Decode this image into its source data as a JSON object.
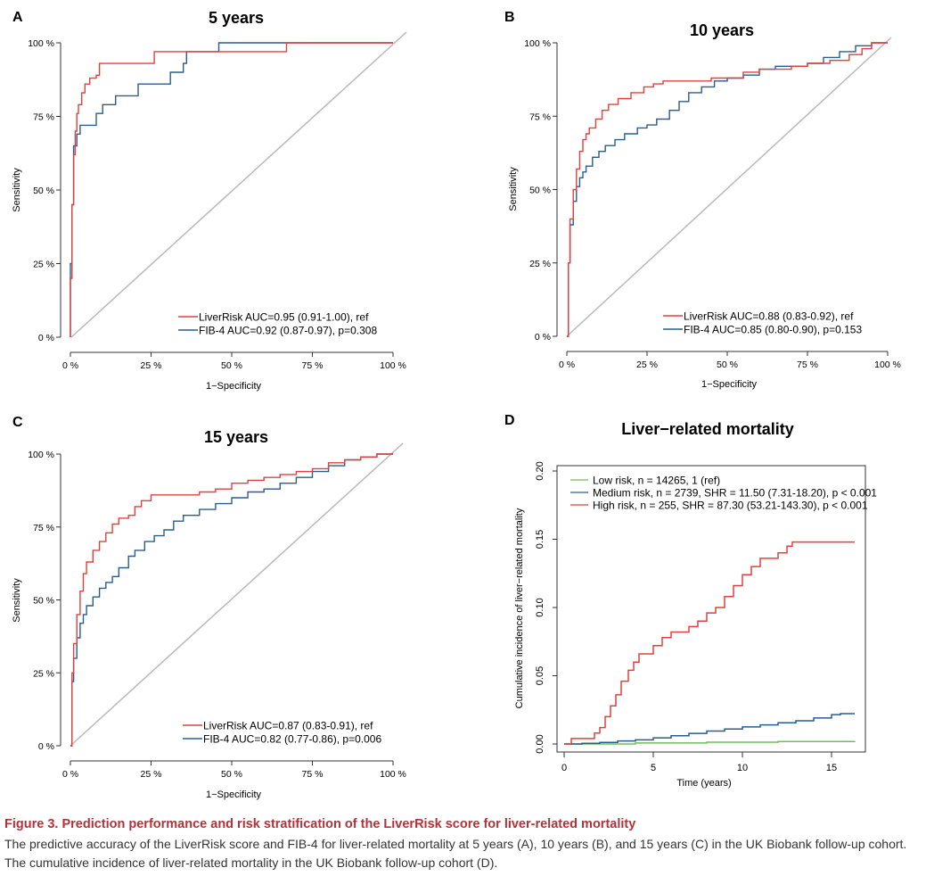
{
  "chart_data": [
    {
      "panel": "A",
      "type": "line",
      "title": "5 years",
      "xlabel": "1−Specificity",
      "ylabel": "Sensitivity",
      "xlim": [
        0,
        100
      ],
      "ylim": [
        0,
        100
      ],
      "x_ticks": [
        "0 %",
        "25 %",
        "50 %",
        "75 %",
        "100 %"
      ],
      "y_ticks": [
        "0 %",
        "25 %",
        "50 %",
        "75 %",
        "100 %"
      ],
      "legend": "bottom-right",
      "reference_line": true,
      "series": [
        {
          "name": "LiverRisk AUC=0.95 (0.91-1.00), ref",
          "color": "#e0413e",
          "points": [
            [
              0,
              0
            ],
            [
              0,
              20
            ],
            [
              0.5,
              45
            ],
            [
              1,
              62
            ],
            [
              1.5,
              70
            ],
            [
              2,
              76
            ],
            [
              2.5,
              79
            ],
            [
              3.5,
              83
            ],
            [
              4.5,
              86
            ],
            [
              6,
              88
            ],
            [
              8,
              89
            ],
            [
              9,
              93
            ],
            [
              25,
              93
            ],
            [
              26,
              97
            ],
            [
              66,
              97
            ],
            [
              67,
              100
            ],
            [
              100,
              100
            ]
          ]
        },
        {
          "name": "FIB-4 AUC=0.92 (0.87-0.97), p=0.308",
          "color": "#2a5d8f",
          "points": [
            [
              0,
              0
            ],
            [
              0,
              25
            ],
            [
              0.5,
              45
            ],
            [
              1,
              65
            ],
            [
              2,
              69
            ],
            [
              3,
              72
            ],
            [
              7,
              72
            ],
            [
              8,
              76
            ],
            [
              10,
              79
            ],
            [
              13,
              79
            ],
            [
              14,
              82
            ],
            [
              20,
              82
            ],
            [
              21,
              86
            ],
            [
              30,
              86
            ],
            [
              31,
              90
            ],
            [
              35,
              93
            ],
            [
              36,
              97
            ],
            [
              45,
              97
            ],
            [
              46,
              100
            ],
            [
              100,
              100
            ]
          ]
        }
      ]
    },
    {
      "panel": "B",
      "type": "line",
      "title": "10 years",
      "xlabel": "1−Specificity",
      "ylabel": "Sensitivity",
      "xlim": [
        0,
        100
      ],
      "ylim": [
        0,
        100
      ],
      "x_ticks": [
        "0 %",
        "25 %",
        "50 %",
        "75 %",
        "100 %"
      ],
      "y_ticks": [
        "0 %",
        "25 %",
        "50 %",
        "75 %",
        "100 %"
      ],
      "legend": "bottom-right",
      "reference_line": true,
      "series": [
        {
          "name": "LiverRisk AUC=0.88 (0.83-0.92), ref",
          "color": "#e0413e",
          "points": [
            [
              0,
              0
            ],
            [
              0.5,
              25
            ],
            [
              1,
              40
            ],
            [
              2,
              50
            ],
            [
              3,
              57
            ],
            [
              4,
              63
            ],
            [
              5,
              67
            ],
            [
              6,
              69
            ],
            [
              7,
              71
            ],
            [
              9,
              74
            ],
            [
              11,
              77
            ],
            [
              13,
              79
            ],
            [
              16,
              81
            ],
            [
              20,
              83
            ],
            [
              24,
              85
            ],
            [
              27,
              86
            ],
            [
              30,
              87
            ],
            [
              40,
              87
            ],
            [
              45,
              88
            ],
            [
              55,
              90
            ],
            [
              60,
              91
            ],
            [
              70,
              92
            ],
            [
              75,
              93
            ],
            [
              82,
              94
            ],
            [
              88,
              96
            ],
            [
              92,
              98
            ],
            [
              95,
              100
            ],
            [
              100,
              100
            ]
          ]
        },
        {
          "name": "FIB-4 AUC=0.85 (0.80-0.90), p=0.153",
          "color": "#2a5d8f",
          "points": [
            [
              0,
              0
            ],
            [
              0.5,
              25
            ],
            [
              1,
              38
            ],
            [
              2,
              46
            ],
            [
              3,
              51
            ],
            [
              4,
              54
            ],
            [
              5,
              56
            ],
            [
              6,
              58
            ],
            [
              8,
              61
            ],
            [
              10,
              63
            ],
            [
              12,
              65
            ],
            [
              15,
              67
            ],
            [
              18,
              69
            ],
            [
              22,
              71
            ],
            [
              25,
              72
            ],
            [
              28,
              74
            ],
            [
              32,
              77
            ],
            [
              35,
              80
            ],
            [
              38,
              83
            ],
            [
              42,
              85
            ],
            [
              46,
              87
            ],
            [
              50,
              88
            ],
            [
              55,
              89
            ],
            [
              60,
              91
            ],
            [
              65,
              92
            ],
            [
              70,
              92
            ],
            [
              75,
              93
            ],
            [
              80,
              95
            ],
            [
              85,
              97
            ],
            [
              90,
              99
            ],
            [
              95,
              100
            ],
            [
              100,
              100
            ]
          ]
        }
      ]
    },
    {
      "panel": "C",
      "type": "line",
      "title": "15 years",
      "xlabel": "1−Specificity",
      "ylabel": "Sensitivity",
      "xlim": [
        0,
        100
      ],
      "ylim": [
        0,
        100
      ],
      "x_ticks": [
        "0 %",
        "25 %",
        "50 %",
        "75 %",
        "100 %"
      ],
      "y_ticks": [
        "0 %",
        "25 %",
        "50 %",
        "75 %",
        "100 %"
      ],
      "legend": "bottom-right",
      "reference_line": true,
      "series": [
        {
          "name": "LiverRisk AUC=0.87 (0.83-0.91), ref",
          "color": "#e0413e",
          "points": [
            [
              0,
              0
            ],
            [
              0.5,
              25
            ],
            [
              1,
              35
            ],
            [
              2,
              45
            ],
            [
              3,
              53
            ],
            [
              4,
              59
            ],
            [
              5,
              63
            ],
            [
              7,
              67
            ],
            [
              9,
              70
            ],
            [
              11,
              73
            ],
            [
              13,
              76
            ],
            [
              15,
              78
            ],
            [
              18,
              79
            ],
            [
              20,
              82
            ],
            [
              22,
              84
            ],
            [
              25,
              86
            ],
            [
              30,
              86
            ],
            [
              40,
              87
            ],
            [
              45,
              88
            ],
            [
              50,
              90
            ],
            [
              55,
              91
            ],
            [
              60,
              92
            ],
            [
              65,
              93
            ],
            [
              70,
              94
            ],
            [
              75,
              95
            ],
            [
              80,
              97
            ],
            [
              85,
              98
            ],
            [
              90,
              99
            ],
            [
              95,
              100
            ],
            [
              100,
              100
            ]
          ]
        },
        {
          "name": "FIB-4 AUC=0.82 (0.77-0.86), p=0.006",
          "color": "#2a5d8f",
          "points": [
            [
              0,
              0
            ],
            [
              0.5,
              22
            ],
            [
              1,
              30
            ],
            [
              2,
              37
            ],
            [
              3,
              42
            ],
            [
              4,
              45
            ],
            [
              5,
              48
            ],
            [
              7,
              51
            ],
            [
              9,
              54
            ],
            [
              11,
              56
            ],
            [
              13,
              58
            ],
            [
              15,
              61
            ],
            [
              18,
              65
            ],
            [
              20,
              67
            ],
            [
              23,
              70
            ],
            [
              26,
              72
            ],
            [
              29,
              74
            ],
            [
              32,
              77
            ],
            [
              35,
              79
            ],
            [
              40,
              81
            ],
            [
              45,
              83
            ],
            [
              50,
              85
            ],
            [
              55,
              87
            ],
            [
              60,
              88
            ],
            [
              65,
              90
            ],
            [
              70,
              92
            ],
            [
              75,
              94
            ],
            [
              80,
              96
            ],
            [
              85,
              98
            ],
            [
              90,
              99
            ],
            [
              95,
              100
            ],
            [
              100,
              100
            ]
          ]
        }
      ]
    },
    {
      "panel": "D",
      "type": "line",
      "title": "Liver−related mortality",
      "xlabel": "Time (years)",
      "ylabel": "Cumulative incidence of liver−related mortality",
      "xlim": [
        0,
        16.5
      ],
      "ylim": [
        0,
        0.2
      ],
      "x_ticks": [
        "0",
        "5",
        "10",
        "15"
      ],
      "y_ticks": [
        "0.00",
        "0.05",
        "0.10",
        "0.15",
        "0.20"
      ],
      "legend": "top-left",
      "series": [
        {
          "name": "Low risk, n = 14265, 1 (ref)",
          "color": "#6cbf5b",
          "points": [
            [
              0,
              0
            ],
            [
              4,
              0.0007
            ],
            [
              8,
              0.0013
            ],
            [
              12,
              0.0018
            ],
            [
              16.3,
              0.002
            ]
          ]
        },
        {
          "name": "Medium risk, n = 2739, SHR = 11.50 (7.31-18.20), p < 0.001",
          "color": "#2a5d8f",
          "points": [
            [
              0,
              0
            ],
            [
              1,
              0.0005
            ],
            [
              2,
              0.0012
            ],
            [
              3,
              0.0022
            ],
            [
              4,
              0.003
            ],
            [
              5,
              0.0045
            ],
            [
              6,
              0.006
            ],
            [
              7,
              0.0078
            ],
            [
              8,
              0.0095
            ],
            [
              9,
              0.011
            ],
            [
              10,
              0.0125
            ],
            [
              11,
              0.014
            ],
            [
              12,
              0.0155
            ],
            [
              13,
              0.017
            ],
            [
              14,
              0.019
            ],
            [
              15,
              0.0215
            ],
            [
              15.5,
              0.0222
            ],
            [
              16.3,
              0.0222
            ]
          ]
        },
        {
          "name": "High risk, n = 255, SHR = 87.30 (53.21-143.30), p < 0.001",
          "color": "#e0413e",
          "points": [
            [
              0,
              0
            ],
            [
              0.4,
              0.004
            ],
            [
              1.5,
              0.004
            ],
            [
              1.7,
              0.008
            ],
            [
              2,
              0.012
            ],
            [
              2.3,
              0.02
            ],
            [
              2.6,
              0.028
            ],
            [
              2.9,
              0.036
            ],
            [
              3.2,
              0.046
            ],
            [
              3.6,
              0.054
            ],
            [
              3.9,
              0.06
            ],
            [
              4.2,
              0.066
            ],
            [
              4.8,
              0.066
            ],
            [
              5,
              0.072
            ],
            [
              5.5,
              0.078
            ],
            [
              6,
              0.082
            ],
            [
              6.6,
              0.082
            ],
            [
              7,
              0.086
            ],
            [
              7.5,
              0.09
            ],
            [
              8,
              0.096
            ],
            [
              8.5,
              0.1
            ],
            [
              9,
              0.108
            ],
            [
              9.5,
              0.116
            ],
            [
              10,
              0.124
            ],
            [
              10.5,
              0.13
            ],
            [
              11,
              0.136
            ],
            [
              11.5,
              0.136
            ],
            [
              12,
              0.14
            ],
            [
              12.5,
              0.145
            ],
            [
              12.8,
              0.148
            ],
            [
              16.3,
              0.148
            ]
          ]
        }
      ]
    }
  ],
  "caption": {
    "title": "Figure 3. Prediction performance and risk stratification of the LiverRisk score for liver-related mortality",
    "text": "The predictive accuracy of the LiverRisk score and FIB-4 for liver-related mortality at 5 years (A), 10 years (B), and 15 years (C) in the UK Biobank follow-up cohort. The cumulative incidence of liver-related mortality in the UK Biobank follow-up cohort (D)."
  }
}
